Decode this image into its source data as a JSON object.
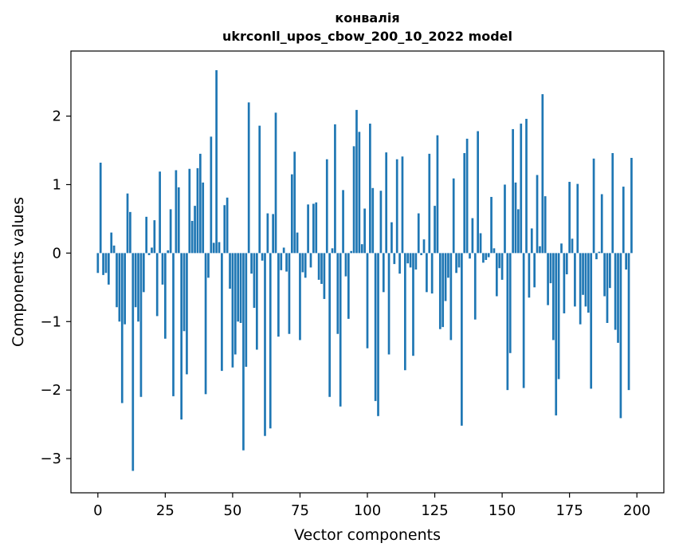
{
  "chart_data": {
    "type": "bar",
    "title_line1": "конвалія",
    "title_line2": "ukrconll_upos_cbow_200_10_2022 model",
    "xlabel": "Vector components",
    "ylabel": "Components values",
    "xlim": [
      -10,
      210
    ],
    "ylim": [
      -3.5,
      2.95
    ],
    "xticks": [
      0,
      25,
      50,
      75,
      100,
      125,
      150,
      175,
      200
    ],
    "xtick_labels": [
      "0",
      "25",
      "50",
      "75",
      "100",
      "125",
      "150",
      "175",
      "200"
    ],
    "yticks": [
      -3,
      -2,
      -1,
      0,
      1,
      2
    ],
    "ytick_labels": [
      "−3",
      "−2",
      "−1",
      "0",
      "1",
      "2"
    ],
    "grid": false,
    "bar_color": "#1f77b4",
    "values": [
      -0.29,
      1.32,
      -0.32,
      -0.29,
      -0.46,
      0.3,
      0.11,
      -0.79,
      -1.0,
      -2.19,
      -1.04,
      0.87,
      0.6,
      -3.18,
      -0.79,
      -1.0,
      -2.1,
      -0.57,
      0.53,
      -0.03,
      0.08,
      0.48,
      -0.92,
      1.19,
      -0.46,
      -1.25,
      0.04,
      0.64,
      -2.09,
      1.21,
      0.96,
      -2.43,
      -1.14,
      -1.77,
      1.23,
      0.47,
      0.69,
      1.24,
      1.45,
      1.03,
      -2.06,
      -0.36,
      1.7,
      0.15,
      2.67,
      0.16,
      -1.72,
      0.7,
      0.81,
      -0.52,
      -1.67,
      -1.48,
      -1.0,
      -1.02,
      -2.88,
      -1.66,
      2.2,
      -0.3,
      -0.8,
      -1.41,
      1.86,
      -0.11,
      -2.67,
      0.58,
      -2.56,
      0.57,
      2.05,
      -1.22,
      -0.25,
      0.08,
      -0.27,
      -1.18,
      1.15,
      1.48,
      0.3,
      -1.27,
      -0.28,
      -0.36,
      0.71,
      -0.21,
      0.72,
      0.74,
      -0.39,
      -0.45,
      -0.67,
      1.37,
      -2.1,
      0.07,
      1.88,
      -1.18,
      -2.24,
      0.92,
      -0.34,
      -0.96,
      0.03,
      1.56,
      2.09,
      1.77,
      0.13,
      0.65,
      -1.39,
      1.89,
      0.95,
      -2.16,
      -2.38,
      0.91,
      -0.57,
      1.47,
      -1.48,
      0.45,
      -0.16,
      1.37,
      -0.3,
      1.41,
      -1.71,
      -0.15,
      -0.21,
      -1.5,
      -0.24,
      0.58,
      -0.03,
      0.2,
      -0.57,
      1.45,
      -0.59,
      0.69,
      1.72,
      -1.11,
      -1.08,
      -0.7,
      -0.36,
      -1.27,
      1.09,
      -0.29,
      -0.21,
      -2.52,
      1.46,
      1.67,
      -0.08,
      0.51,
      -0.97,
      1.78,
      0.29,
      -0.14,
      -0.1,
      -0.06,
      0.82,
      0.07,
      -0.63,
      -0.22,
      -0.39,
      1.0,
      -2.0,
      -1.46,
      1.81,
      1.03,
      0.64,
      1.89,
      -1.97,
      1.96,
      -0.65,
      0.36,
      -0.5,
      1.14,
      0.1,
      2.32,
      0.83,
      -0.76,
      -0.44,
      -1.27,
      -2.37,
      -1.84,
      0.14,
      -0.88,
      -0.31,
      1.04,
      0.21,
      -0.78,
      1.01,
      -1.04,
      -0.61,
      -0.78,
      -0.87,
      -1.98,
      1.38,
      -0.09,
      0.02,
      0.86,
      -0.63,
      -1.02,
      -0.51,
      1.46,
      -1.12,
      -1.31,
      -2.41,
      0.97,
      -0.24,
      -2.0,
      1.39
    ]
  }
}
